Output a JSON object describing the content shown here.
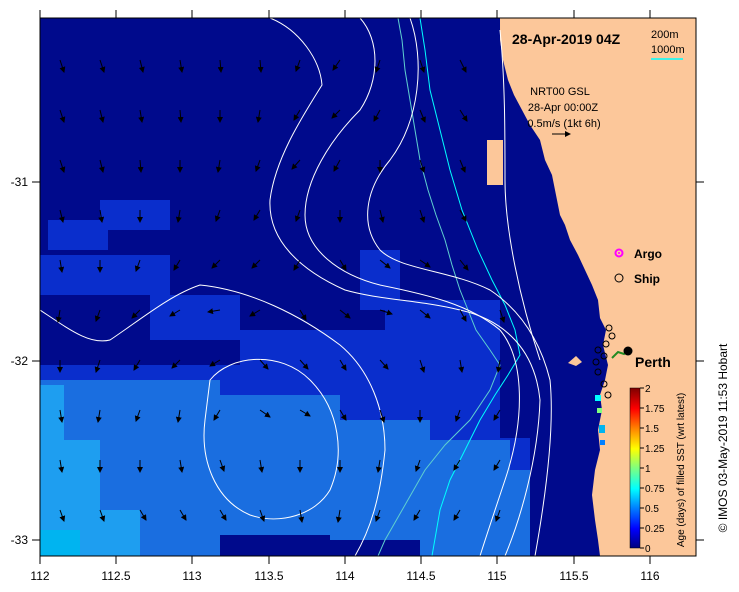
{
  "map": {
    "title": "28-Apr-2019 04Z",
    "contours": {
      "label_200": "200m",
      "label_1000": "1000m",
      "color_200": "#00ffff",
      "color_1000": "#5fd0d0"
    },
    "current": {
      "line1": "NRT00 GSL",
      "line2": "28-Apr 00:00Z",
      "line3": "0.5m/s (1kt 6h)"
    },
    "legend": {
      "argo": "Argo",
      "ship": "Ship",
      "argo_color": "#ff00ff"
    },
    "city": "Perth",
    "credit": "© IMOS 03-May-2019 11:53 Hobart",
    "x_ticks": [
      "112",
      "112.5",
      "113",
      "113.5",
      "114",
      "114.5",
      "115",
      "115.5",
      "116"
    ],
    "y_ticks": [
      "-31",
      "-32",
      "-33"
    ],
    "colorbar": {
      "title": "Age (days) of filled SST (wrt latest)",
      "ticks": [
        "2",
        "1.75",
        "1.5",
        "1.25",
        "1",
        "0.75",
        "0.5",
        "0.25",
        "0"
      ],
      "colors": [
        "#00007f",
        "#0000ff",
        "#0080ff",
        "#00ffff",
        "#7fff7f",
        "#ffff00",
        "#ff8000",
        "#ff0000",
        "#7f0000"
      ]
    },
    "colors": {
      "land": "#fcc79a",
      "ocean_0": "#000a8c",
      "ocean_1": "#0a2ecc",
      "ocean_2": "#1a6ee0",
      "ocean_3": "#1e9ef0",
      "ocean_4": "#00b4f0"
    }
  }
}
